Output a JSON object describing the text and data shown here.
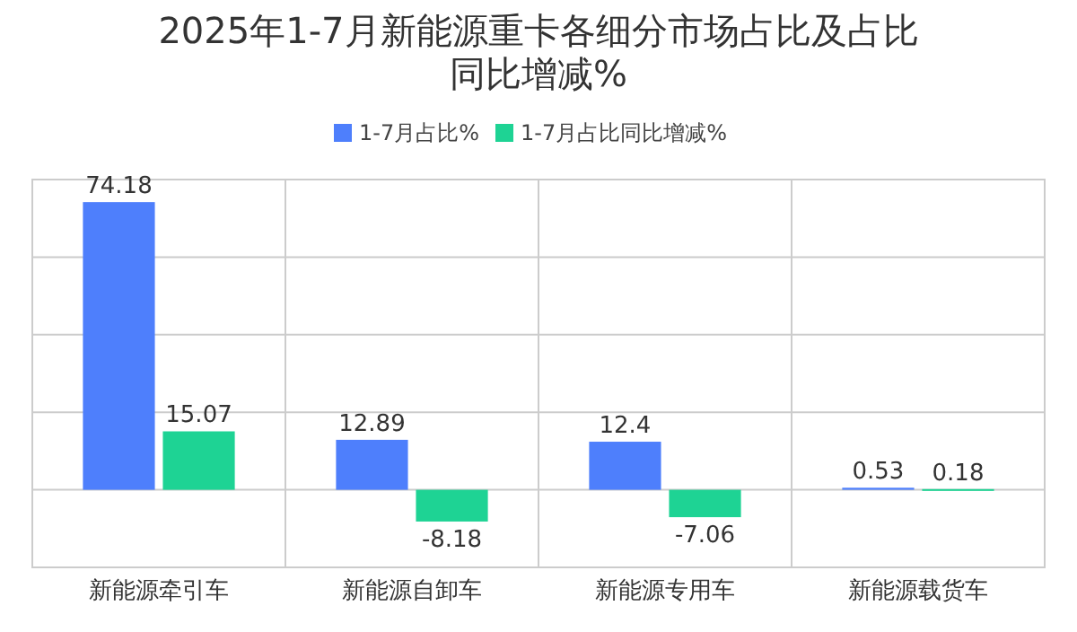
{
  "chart_data": {
    "type": "bar",
    "title": "2025年1-7月新能源重卡各细分市场占比及占比同比增减%",
    "categories": [
      "新能源牵引车",
      "新能源自卸车",
      "新能源专用车",
      "新能源载货车"
    ],
    "series": [
      {
        "name": "1-7月占比%",
        "color": "#4e7ffc",
        "values": [
          74.18,
          12.89,
          12.4,
          0.53
        ]
      },
      {
        "name": "1-7月占比同比增减%",
        "color": "#1ed394",
        "values": [
          15.07,
          -8.18,
          -7.06,
          0.18
        ]
      }
    ],
    "ylim": [
      -20,
      80
    ],
    "yticks": [
      {
        "value": -20,
        "label": null
      },
      {
        "value": 0,
        "label": null
      },
      {
        "value": 20,
        "label": null
      },
      {
        "value": 40,
        "label": null
      },
      {
        "value": 60,
        "label": null
      },
      {
        "value": 80,
        "label": null
      }
    ],
    "tick_labels": "x",
    "grid": true,
    "legend": "top",
    "data_labels": true
  }
}
